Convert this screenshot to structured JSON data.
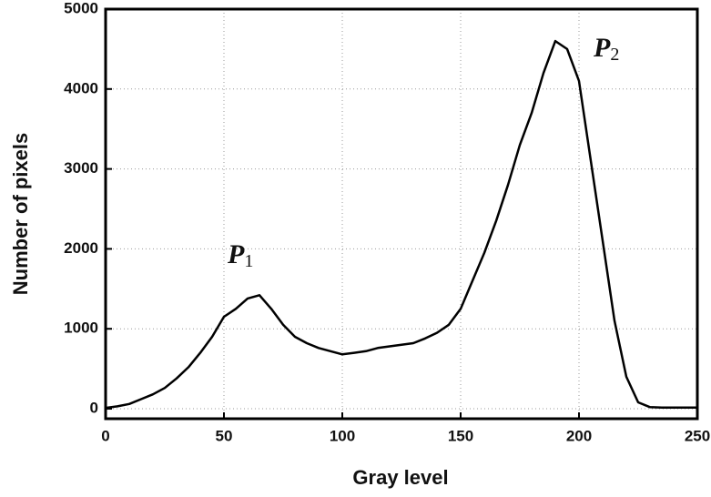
{
  "chart_data": {
    "type": "line",
    "x_label": "Gray level",
    "y_label": "Number of pixels",
    "x": [
      0,
      5,
      10,
      15,
      20,
      25,
      30,
      35,
      40,
      45,
      50,
      55,
      60,
      65,
      70,
      75,
      80,
      85,
      90,
      95,
      100,
      105,
      110,
      115,
      120,
      125,
      130,
      135,
      140,
      145,
      150,
      155,
      160,
      165,
      170,
      175,
      180,
      185,
      190,
      195,
      200,
      205,
      210,
      215,
      220,
      225,
      230,
      235,
      240,
      245,
      250
    ],
    "series": [
      {
        "color": "#000000",
        "values": [
          10,
          30,
          60,
          120,
          180,
          260,
          380,
          520,
          700,
          900,
          1150,
          1250,
          1380,
          1420,
          1250,
          1050,
          900,
          820,
          760,
          720,
          680,
          700,
          720,
          760,
          780,
          800,
          820,
          880,
          950,
          1050,
          1250,
          1600,
          1950,
          2350,
          2800,
          3300,
          3700,
          4200,
          4600,
          4500,
          4100,
          3100,
          2100,
          1100,
          400,
          80,
          20,
          15,
          15,
          15,
          15
        ]
      }
    ],
    "xlim": [
      0,
      250
    ],
    "xticks": [
      0,
      50,
      100,
      150,
      200,
      250
    ],
    "ylim": [
      -125,
      5000
    ],
    "yticks": [
      0,
      1000,
      2000,
      3000,
      4000,
      5000
    ],
    "grid": true,
    "annotations": [
      {
        "text": "P",
        "sub": "1"
      },
      {
        "text": "P",
        "sub": "2"
      }
    ]
  }
}
